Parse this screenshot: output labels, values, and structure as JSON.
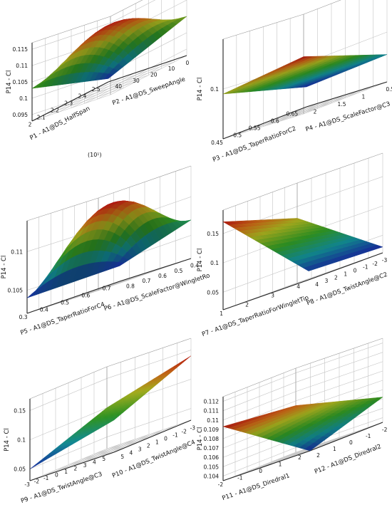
{
  "chart_data": [
    {
      "type": "surface3d",
      "zlabel": "P14 - Cl",
      "xlabel": "P1 - A1@DS_HalfSpan",
      "ylabel": "P2 - A1@DS_SweepAngle",
      "xunit": "(10¹)",
      "zticks": [
        "0.095",
        "0.1",
        "0.105",
        "0.11",
        "0.115"
      ],
      "xticks": [
        "2",
        "2.1",
        "2.2",
        "2.3",
        "2.4",
        "2.5"
      ],
      "yticks": [
        "40",
        "30",
        "20",
        "10",
        "0"
      ],
      "zlim": [
        0.093,
        0.117
      ],
      "surface": {
        "z_at_corners": {
          "front": 0.094,
          "left": 0.103,
          "right": 0.105,
          "back": 0.111
        },
        "peak": 0.112
      }
    },
    {
      "type": "surface3d",
      "zlabel": "P14 - Cl",
      "xlabel": "P3 - A1@DS_TaperRatioForC2",
      "ylabel": "P4 - A1@DS_ScaleFactor@C3",
      "zticks": [
        "0.1"
      ],
      "xticks": [
        "0.45",
        "0.5",
        "0.55",
        "0.6",
        "0.65"
      ],
      "yticks": [
        "2",
        "1.5",
        "1",
        "0.5"
      ],
      "zlim": [
        0.08,
        0.12
      ],
      "surface": {
        "z_at_corners": {
          "front": 0.088,
          "left": 0.098,
          "right": 0.091,
          "back": 0.103
        }
      }
    },
    {
      "type": "surface3d",
      "zlabel": "P14 - Cl",
      "xlabel": "P5 - A1@DS_TaperRatioForC4",
      "ylabel": "P6 - A1@DS_ScaleFactor@WingletRo",
      "zticks": [
        "0.105",
        "0.11"
      ],
      "xticks": [
        "0.3",
        "0.4",
        "0.5",
        "0.6",
        "0.7"
      ],
      "yticks": [
        "0.8",
        "0.7",
        "0.6",
        "0.5",
        "0.4"
      ],
      "zlim": [
        0.102,
        0.114
      ],
      "surface": {
        "z_at_corners": {
          "front": 0.104,
          "left": 0.104,
          "right": 0.107,
          "back": 0.109
        },
        "peak": 0.1125
      }
    },
    {
      "type": "surface3d",
      "zlabel": "P14 - Cl",
      "xlabel": "P7 - A1@DS_TaperRatioForWingletTip",
      "ylabel": "P8 - A1@DS_TwistAngle@C2",
      "zticks": [
        "0.05",
        "0.1",
        "0.15"
      ],
      "xticks": [
        "1",
        "2",
        "3",
        "4"
      ],
      "yticks": [
        "4",
        "3",
        "2",
        "1",
        "0",
        "-1",
        "-2",
        "-3"
      ],
      "zlim": [
        0.02,
        0.19
      ],
      "surface": {
        "z_at_corners": {
          "front": 0.035,
          "left": 0.17,
          "right": 0.03,
          "back": 0.13
        }
      }
    },
    {
      "type": "surface3d",
      "zlabel": "P14 - Cl",
      "xlabel": "P9 - A1@DS_TwistAngle@C3",
      "ylabel": "P10 - A1@DS_TwistAngle@C4",
      "zticks": [
        "0.05",
        "0.1",
        "0.15"
      ],
      "xticks": [
        "-3",
        "-2",
        "-1",
        "0",
        "1",
        "2",
        "3",
        "4",
        "5"
      ],
      "yticks": [
        "5",
        "4",
        "3",
        "2",
        "1",
        "0",
        "-1",
        "-2",
        "-3"
      ],
      "zlim": [
        0.03,
        0.17
      ],
      "surface": {
        "z_at_corners": {
          "front": 0.085,
          "left": 0.05,
          "right": 0.14,
          "back": 0.1
        }
      }
    },
    {
      "type": "surface3d",
      "zlabel": "P14 - Cl",
      "xlabel": "P11 - A1@DS_Diredral1",
      "ylabel": "P12 - A1@DS_Diredral2",
      "zticks": [
        "0.104",
        "0.105",
        "0.106",
        "0.107",
        "0.108",
        "0.109",
        "0.11",
        "0.111",
        "0.112"
      ],
      "xticks": [
        "-2",
        "-1",
        "0",
        "1",
        "2"
      ],
      "yticks": [
        "2",
        "1",
        "0",
        "-1",
        "-2"
      ],
      "zlim": [
        0.1035,
        0.1125
      ],
      "surface": {
        "z_at_corners": {
          "front": 0.1035,
          "left": 0.1093,
          "right": 0.1062,
          "back": 0.1085
        }
      }
    }
  ]
}
